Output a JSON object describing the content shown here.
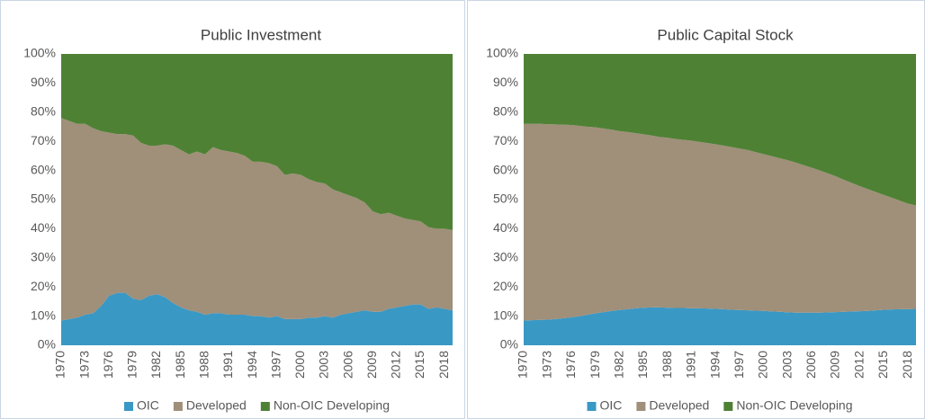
{
  "chart_data": [
    {
      "type": "stacked_area",
      "title": "Public Investment",
      "categories": [
        "1970",
        null,
        null,
        "1973",
        null,
        null,
        "1976",
        null,
        null,
        "1979",
        null,
        null,
        "1982",
        null,
        null,
        "1985",
        null,
        null,
        "1988",
        null,
        null,
        "1991",
        null,
        null,
        "1994",
        null,
        null,
        "1997",
        null,
        null,
        "2000",
        null,
        null,
        "2003",
        null,
        null,
        "2006",
        null,
        null,
        "2009",
        null,
        null,
        "2012",
        null,
        null,
        "2015",
        null,
        null,
        "2018",
        null
      ],
      "series": [
        {
          "name": "OIC",
          "color": "#3a98c4",
          "values": [
            8.5,
            9,
            9.5,
            10.5,
            11,
            13.5,
            17,
            18,
            18,
            16,
            15.5,
            17,
            17.5,
            16.5,
            14.5,
            13,
            12,
            11.5,
            10.5,
            11,
            11,
            10.5,
            10.5,
            10.5,
            10,
            10,
            9.5,
            10,
            9,
            9,
            9,
            9.5,
            9.5,
            10,
            9.5,
            10.5,
            11,
            11.5,
            12,
            11.5,
            11.5,
            12.5,
            13,
            13.5,
            14,
            14,
            12.5,
            13,
            12.5,
            12
          ]
        },
        {
          "name": "Developed",
          "color": "#a08f79",
          "values": [
            69.5,
            68,
            66.5,
            65.5,
            63.5,
            60,
            56,
            54.5,
            54.5,
            56,
            54,
            51.5,
            51,
            52.5,
            54,
            54,
            53.5,
            55,
            55,
            57,
            56,
            56,
            55.5,
            54.5,
            53,
            53,
            53,
            51.5,
            49.5,
            50,
            49.5,
            47.5,
            46.5,
            45.5,
            44,
            42,
            40.5,
            39,
            37,
            34.5,
            33.5,
            33,
            31.5,
            30,
            29,
            28.5,
            28,
            27,
            27.5,
            27.5
          ]
        },
        {
          "name": "Non-OIC Developing",
          "color": "#4f8135",
          "values": [
            22,
            23,
            24,
            24,
            25.5,
            26.5,
            27,
            27.5,
            27.5,
            28,
            30.5,
            31.5,
            31.5,
            31,
            31.5,
            33,
            34.5,
            33.5,
            34.5,
            32,
            33,
            33.5,
            34,
            35,
            37,
            37,
            37.5,
            38.5,
            41.5,
            41,
            41.5,
            43,
            44,
            44.5,
            46.5,
            47.5,
            48.5,
            49.5,
            51,
            54,
            55,
            54.5,
            55.5,
            56.5,
            57,
            57.5,
            59.5,
            60,
            60,
            60.5
          ]
        }
      ],
      "ylim": [
        0,
        100
      ],
      "yticks": [
        {
          "value": 0,
          "label": "0%"
        },
        {
          "value": 10,
          "label": "10%"
        },
        {
          "value": 20,
          "label": "20%"
        },
        {
          "value": 30,
          "label": "30%"
        },
        {
          "value": 40,
          "label": "40%"
        },
        {
          "value": 50,
          "label": "50%"
        },
        {
          "value": 60,
          "label": "60%"
        },
        {
          "value": 70,
          "label": "70%"
        },
        {
          "value": 80,
          "label": "80%"
        },
        {
          "value": 90,
          "label": "90%"
        },
        {
          "value": 100,
          "label": "100%"
        }
      ],
      "legend": "bottom"
    },
    {
      "type": "stacked_area",
      "title": "Public Capital Stock",
      "categories": [
        "1970",
        null,
        null,
        "1973",
        null,
        null,
        "1976",
        null,
        null,
        "1979",
        null,
        null,
        "1982",
        null,
        null,
        "1985",
        null,
        null,
        "1988",
        null,
        null,
        "1991",
        null,
        null,
        "1994",
        null,
        null,
        "1997",
        null,
        null,
        "2000",
        null,
        null,
        "2003",
        null,
        null,
        "2006",
        null,
        null,
        "2009",
        null,
        null,
        "2012",
        null,
        null,
        "2015",
        null,
        null,
        "2018",
        null
      ],
      "series": [
        {
          "name": "OIC",
          "color": "#3a98c4",
          "values": [
            8.5,
            8.6,
            8.7,
            8.8,
            9,
            9.3,
            9.6,
            10,
            10.5,
            11,
            11.4,
            11.8,
            12.1,
            12.4,
            12.7,
            12.9,
            13,
            13,
            12.9,
            12.8,
            12.8,
            12.7,
            12.7,
            12.6,
            12.5,
            12.4,
            12.2,
            12.1,
            12,
            11.9,
            11.8,
            11.6,
            11.5,
            11.3,
            11.2,
            11.2,
            11.2,
            11.2,
            11.3,
            11.4,
            11.5,
            11.6,
            11.7,
            11.8,
            12,
            12.2,
            12.3,
            12.4,
            12.4,
            12.5
          ]
        },
        {
          "name": "Developed",
          "color": "#a08f79",
          "values": [
            67.5,
            67.4,
            67.3,
            67.1,
            66.8,
            66.4,
            66,
            65.3,
            64.5,
            63.8,
            63,
            62.2,
            61.4,
            60.8,
            60.1,
            59.5,
            59,
            58.5,
            58.3,
            58,
            57.7,
            57.5,
            57.1,
            56.8,
            56.5,
            56.1,
            55.8,
            55.4,
            55,
            54.4,
            53.8,
            53.3,
            52.7,
            52.2,
            51.5,
            50.6,
            49.7,
            48.8,
            47.7,
            46.6,
            45.3,
            44.1,
            42.9,
            41.8,
            40.6,
            39.4,
            38.3,
            37.2,
            36.2,
            35.5
          ]
        },
        {
          "name": "Non-OIC Developing",
          "color": "#4f8135",
          "values": [
            24,
            24,
            24,
            24.1,
            24.2,
            24.3,
            24.4,
            24.7,
            25,
            25.2,
            25.6,
            26,
            26.5,
            26.8,
            27.2,
            27.6,
            28,
            28.5,
            28.8,
            29.2,
            29.5,
            29.8,
            30.2,
            30.6,
            31,
            31.5,
            32,
            32.5,
            33,
            33.7,
            34.4,
            35.1,
            35.8,
            36.5,
            37.3,
            38.2,
            39.1,
            40,
            41,
            42,
            43.2,
            44.3,
            45.4,
            46.4,
            47.4,
            48.4,
            49.4,
            50.4,
            51.4,
            52
          ]
        }
      ],
      "ylim": [
        0,
        100
      ],
      "yticks": [
        {
          "value": 0,
          "label": "0%"
        },
        {
          "value": 10,
          "label": "10%"
        },
        {
          "value": 20,
          "label": "20%"
        },
        {
          "value": 30,
          "label": "30%"
        },
        {
          "value": 40,
          "label": "40%"
        },
        {
          "value": 50,
          "label": "50%"
        },
        {
          "value": 60,
          "label": "60%"
        },
        {
          "value": 70,
          "label": "70%"
        },
        {
          "value": 80,
          "label": "80%"
        },
        {
          "value": 90,
          "label": "90%"
        },
        {
          "value": 100,
          "label": "100%"
        }
      ],
      "legend": "bottom"
    }
  ]
}
